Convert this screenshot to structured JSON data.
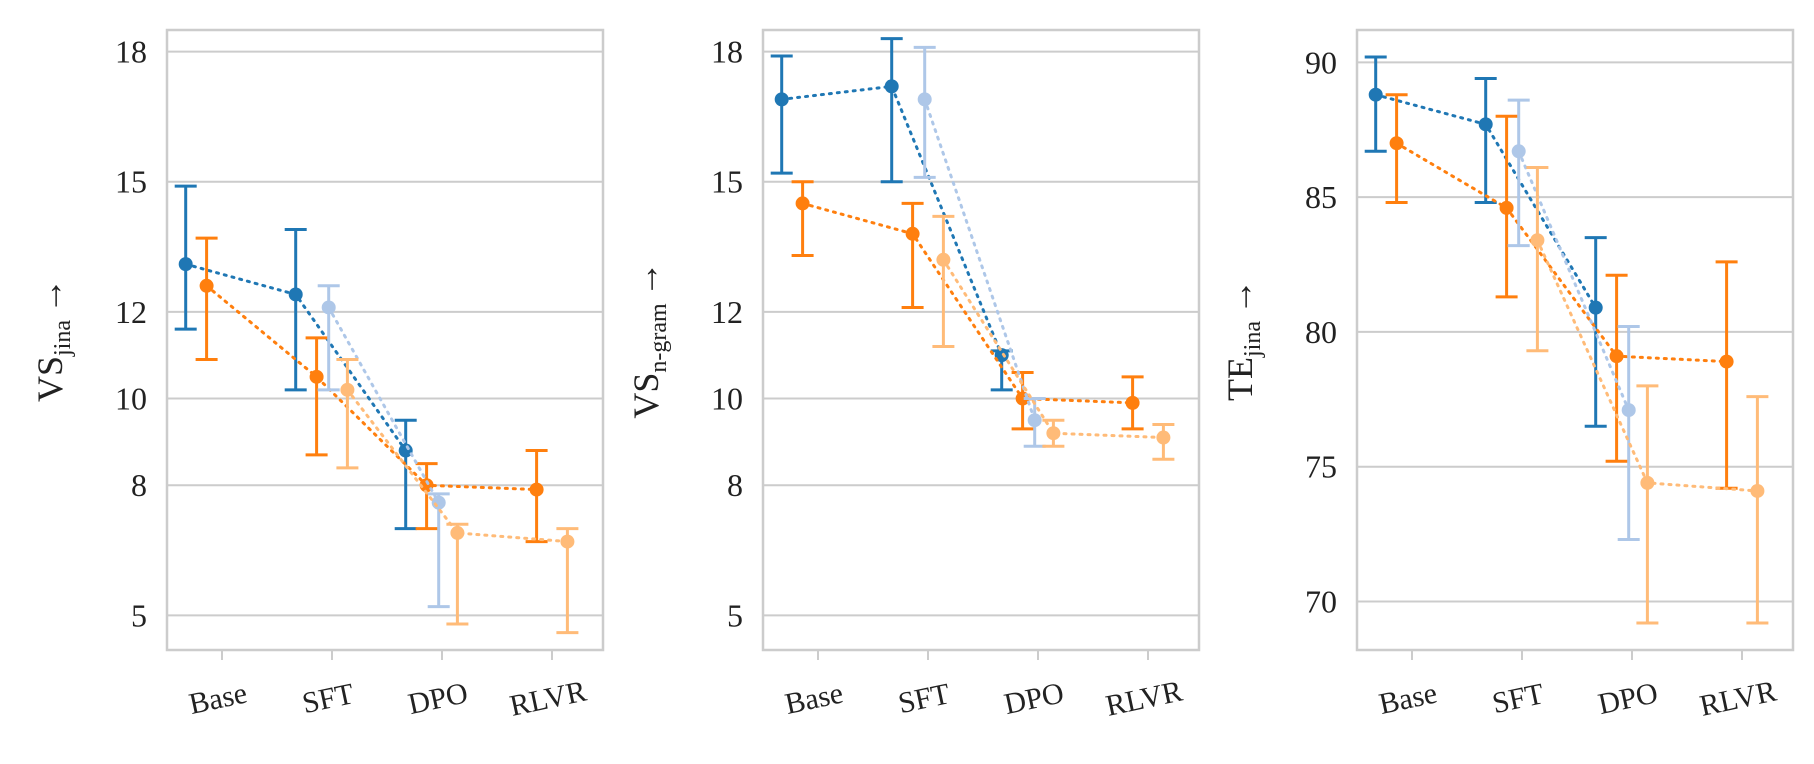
{
  "chart_data": [
    {
      "type": "errorbar-line",
      "ylabel": {
        "main": "VS",
        "sub": "jina",
        "arrow": "→"
      },
      "categories": [
        "Base",
        "SFT",
        "DPO",
        "RLVR"
      ],
      "yticks": [
        5,
        8,
        10,
        12,
        15,
        18
      ],
      "ylim": [
        4.2,
        18.5
      ],
      "grid": true,
      "series": [
        {
          "color": "#1f77b4",
          "points": [
            [
              0,
              13.1,
              11.6,
              14.9
            ],
            [
              1,
              12.4,
              10.2,
              13.9
            ],
            [
              2,
              8.8,
              7.0,
              9.5
            ]
          ]
        },
        {
          "color": "#ff7f0e",
          "points": [
            [
              0,
              12.6,
              10.9,
              13.7
            ],
            [
              1,
              10.5,
              8.7,
              11.4
            ],
            [
              2,
              8.0,
              7.0,
              8.5
            ],
            [
              3,
              7.9,
              6.7,
              8.8
            ]
          ]
        },
        {
          "color": "#aec7e8",
          "points": [
            [
              1,
              12.1,
              10.2,
              12.6
            ],
            [
              2,
              7.6,
              5.2,
              7.8
            ]
          ]
        },
        {
          "color": "#ffbb78",
          "points": [
            [
              1,
              10.2,
              8.4,
              10.9
            ],
            [
              2,
              6.9,
              4.8,
              7.1
            ],
            [
              3,
              6.7,
              4.6,
              7.0
            ]
          ]
        }
      ]
    },
    {
      "type": "errorbar-line",
      "ylabel": {
        "main": "VS",
        "sub": "n-gram",
        "arrow": "→"
      },
      "categories": [
        "Base",
        "SFT",
        "DPO",
        "RLVR"
      ],
      "yticks": [
        5,
        8,
        10,
        12,
        15,
        18
      ],
      "ylim": [
        4.2,
        18.5
      ],
      "grid": true,
      "series": [
        {
          "color": "#1f77b4",
          "points": [
            [
              0,
              16.9,
              15.2,
              17.9
            ],
            [
              1,
              17.2,
              15.0,
              18.3
            ],
            [
              2,
              11.0,
              10.2,
              11.1
            ]
          ]
        },
        {
          "color": "#ff7f0e",
          "points": [
            [
              0,
              14.5,
              13.3,
              15.0
            ],
            [
              1,
              13.8,
              12.1,
              14.5
            ],
            [
              2,
              10.0,
              9.3,
              10.6
            ],
            [
              3,
              9.9,
              9.3,
              10.5
            ]
          ]
        },
        {
          "color": "#aec7e8",
          "points": [
            [
              1,
              16.9,
              15.1,
              18.1
            ],
            [
              2,
              9.5,
              8.9,
              10.0
            ]
          ]
        },
        {
          "color": "#ffbb78",
          "points": [
            [
              1,
              13.2,
              11.2,
              14.2
            ],
            [
              2,
              9.2,
              8.9,
              9.5
            ],
            [
              3,
              9.1,
              8.6,
              9.4
            ]
          ]
        }
      ]
    },
    {
      "type": "errorbar-line",
      "ylabel": {
        "main": "TE",
        "sub": "jina",
        "arrow": "→"
      },
      "categories": [
        "Base",
        "SFT",
        "DPO",
        "RLVR"
      ],
      "yticks": [
        70,
        75,
        80,
        85,
        90
      ],
      "ylim": [
        68.2,
        91.2
      ],
      "grid": true,
      "series": [
        {
          "color": "#1f77b4",
          "points": [
            [
              0,
              88.8,
              86.7,
              90.2
            ],
            [
              1,
              87.7,
              84.8,
              89.4
            ],
            [
              2,
              80.9,
              76.5,
              83.5
            ]
          ]
        },
        {
          "color": "#ff7f0e",
          "points": [
            [
              0,
              87.0,
              84.8,
              88.8
            ],
            [
              1,
              84.6,
              81.3,
              88.0
            ],
            [
              2,
              79.1,
              75.2,
              82.1
            ],
            [
              3,
              78.9,
              74.2,
              82.6
            ]
          ]
        },
        {
          "color": "#aec7e8",
          "points": [
            [
              1,
              86.7,
              83.2,
              88.6
            ],
            [
              2,
              77.1,
              72.3,
              80.2
            ]
          ]
        },
        {
          "color": "#ffbb78",
          "points": [
            [
              1,
              83.4,
              79.3,
              86.1
            ],
            [
              2,
              74.4,
              69.2,
              78.0
            ],
            [
              3,
              74.1,
              69.2,
              77.6
            ]
          ]
        }
      ]
    }
  ]
}
